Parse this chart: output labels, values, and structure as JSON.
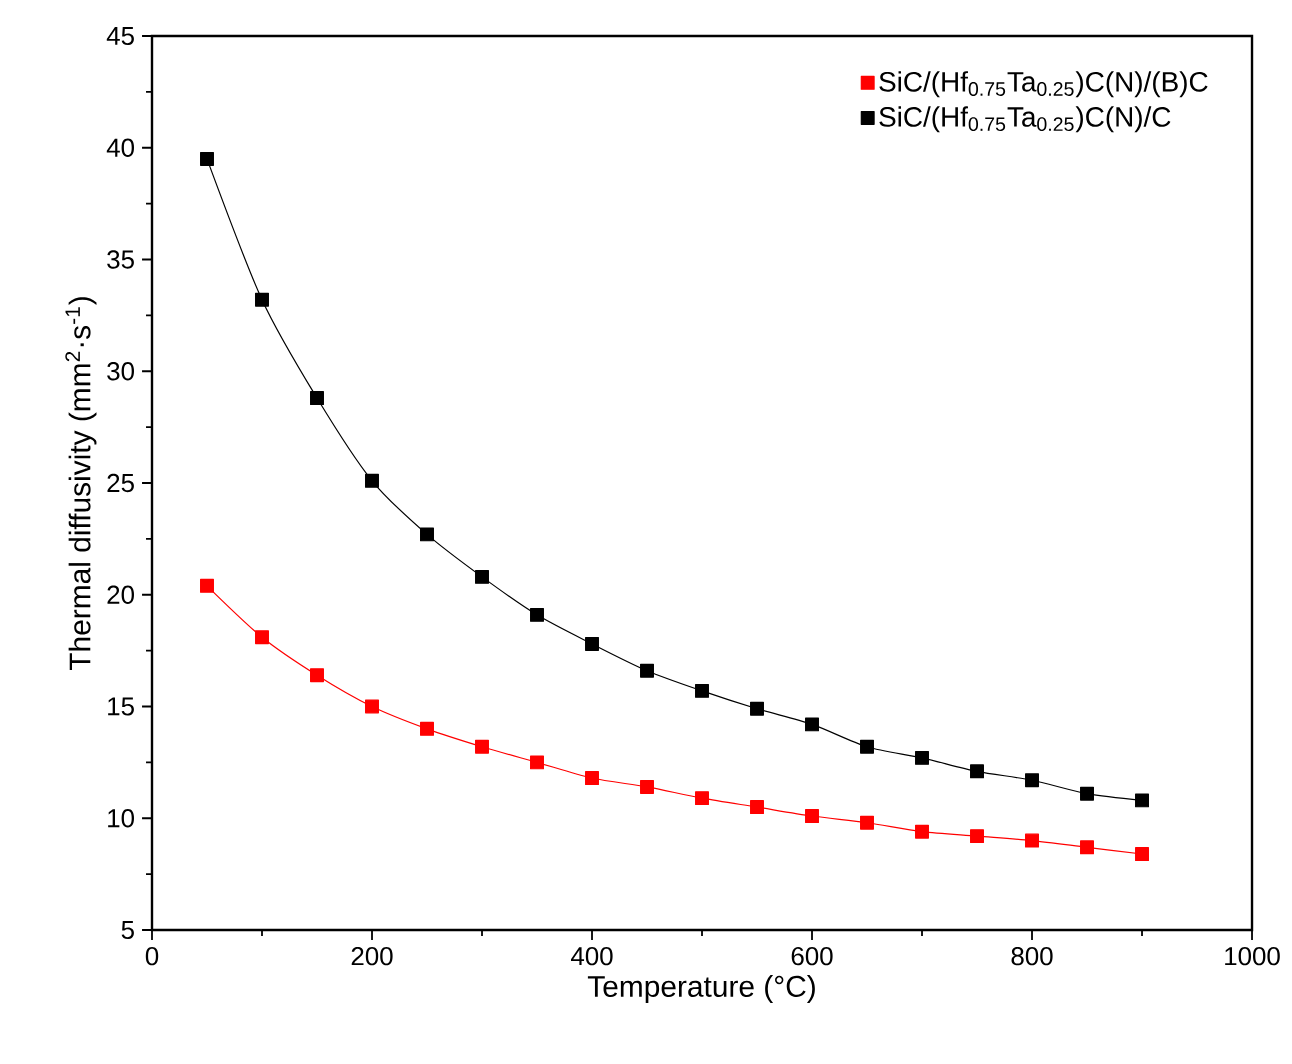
{
  "chart_data": {
    "type": "line",
    "xlabel": "Temperature (°C)",
    "ylabel": "Thermal diffusivity (mm$^{2}$·s$^{-1}$)",
    "xlim": [
      0,
      1000
    ],
    "ylim": [
      5,
      45
    ],
    "xticks": [
      0,
      200,
      400,
      600,
      800,
      1000
    ],
    "yticks": [
      5,
      10,
      15,
      20,
      25,
      30,
      35,
      40,
      45
    ],
    "x": [
      50,
      100,
      150,
      200,
      250,
      300,
      350,
      400,
      450,
      500,
      550,
      600,
      650,
      700,
      750,
      800,
      850,
      900
    ],
    "series": [
      {
        "name": "SiC/(Hf$_{0.75}$Ta$_{0.25}$)C(N)/(B)C",
        "color": "#ff0000",
        "values": [
          20.4,
          18.1,
          16.4,
          15.0,
          14.0,
          13.2,
          12.5,
          11.8,
          11.4,
          10.9,
          10.5,
          10.1,
          9.8,
          9.4,
          9.2,
          9.0,
          8.7,
          8.4
        ]
      },
      {
        "name": "SiC/(Hf$_{0.75}$Ta$_{0.25}$)C(N)/C",
        "color": "#000000",
        "values": [
          39.5,
          33.2,
          28.8,
          25.1,
          22.7,
          20.8,
          19.1,
          17.8,
          16.6,
          15.7,
          14.9,
          14.2,
          13.2,
          12.7,
          12.1,
          11.7,
          11.1,
          10.8
        ]
      }
    ],
    "marker": "square",
    "line_style": "solid",
    "legend": "top right",
    "grid": false
  }
}
